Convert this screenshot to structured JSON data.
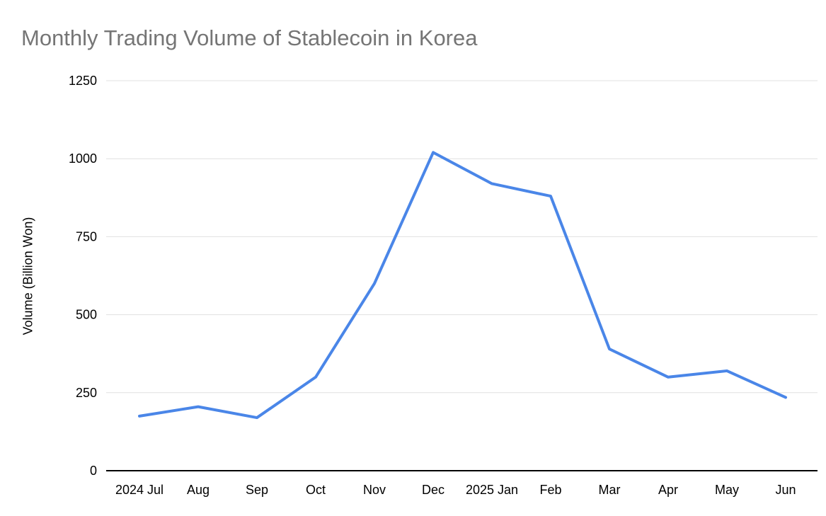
{
  "page": {
    "background": "#ffffff"
  },
  "chart_data": {
    "type": "line",
    "title": "Monthly Trading Volume of Stablecoin in Korea",
    "ylabel": "Volume (Billion Won)",
    "xlabel": "",
    "categories": [
      "2024 Jul",
      "Aug",
      "Sep",
      "Oct",
      "Nov",
      "Dec",
      "2025 Jan",
      "Feb",
      "Mar",
      "Apr",
      "May",
      "Jun"
    ],
    "values": [
      175,
      205,
      170,
      300,
      600,
      1020,
      920,
      880,
      390,
      300,
      320,
      235
    ],
    "ylim": [
      0,
      1250
    ],
    "yticks": [
      0,
      250,
      500,
      750,
      1000,
      1250
    ],
    "grid": "horizontal",
    "legend": "none",
    "line_color": "#4a86e8",
    "line_width": 4,
    "title_color": "#757575",
    "axis_color": "#000000",
    "gridline_color": "#e0e0e0"
  }
}
